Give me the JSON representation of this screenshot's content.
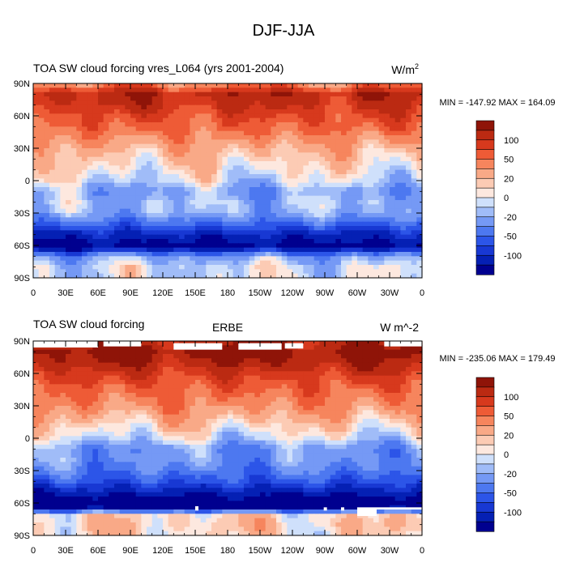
{
  "figure_title": "DJF-JJA",
  "chart_data": [
    {
      "type": "heatmap",
      "title_left": "TOA SW cloud forcing vres_L064 (yrs 2001-2004)",
      "title_center": "",
      "units": "W/m",
      "units_sup": "2",
      "stats": "MIN = -147.92 MAX = 164.09",
      "x_ticks": [
        "0",
        "30E",
        "60E",
        "90E",
        "120E",
        "150E",
        "180",
        "150W",
        "120W",
        "90W",
        "60W",
        "30W",
        "0"
      ],
      "y_ticks": [
        "90N",
        "60N",
        "30N",
        "0",
        "30S",
        "60S",
        "90S"
      ],
      "xlim": [
        0,
        360
      ],
      "ylim": [
        -90,
        90
      ],
      "colorbar_labels": [
        "100",
        "50",
        "20",
        "0",
        "-20",
        "-50",
        "-100"
      ],
      "missing_regions": [],
      "zonal_profile": [
        {
          "lat": 90,
          "value": 40
        },
        {
          "lat": 80,
          "value": 90
        },
        {
          "lat": 70,
          "value": 80
        },
        {
          "lat": 60,
          "value": 65
        },
        {
          "lat": 50,
          "value": 55
        },
        {
          "lat": 40,
          "value": 40
        },
        {
          "lat": 30,
          "value": 25
        },
        {
          "lat": 20,
          "value": 15
        },
        {
          "lat": 10,
          "value": 5
        },
        {
          "lat": 0,
          "value": -5
        },
        {
          "lat": -10,
          "value": -25
        },
        {
          "lat": -20,
          "value": -15
        },
        {
          "lat": -30,
          "value": -20
        },
        {
          "lat": -40,
          "value": -50
        },
        {
          "lat": -50,
          "value": -85
        },
        {
          "lat": -60,
          "value": -110
        },
        {
          "lat": -65,
          "value": -75
        },
        {
          "lat": -70,
          "value": -25
        },
        {
          "lat": -80,
          "value": -5
        },
        {
          "lat": -90,
          "value": -5
        }
      ]
    },
    {
      "type": "heatmap",
      "title_left": "TOA SW cloud forcing",
      "title_center": "ERBE",
      "units": "W m^-2",
      "units_sup": "",
      "stats": "MIN = -235.06 MAX = 179.49",
      "x_ticks": [
        "0",
        "30E",
        "60E",
        "90E",
        "120E",
        "150E",
        "180",
        "150W",
        "120W",
        "90W",
        "60W",
        "30W",
        "0"
      ],
      "y_ticks": [
        "90N",
        "60N",
        "30N",
        "0",
        "30S",
        "60S",
        "90S"
      ],
      "xlim": [
        0,
        360
      ],
      "ylim": [
        -90,
        90
      ],
      "colorbar_labels": [
        "100",
        "50",
        "20",
        "0",
        "-20",
        "-50",
        "-100"
      ],
      "missing_regions": [
        {
          "lon": [
            0,
            60
          ],
          "lat": [
            84,
            90
          ]
        },
        {
          "lon": [
            65,
            100
          ],
          "lat": [
            85,
            90
          ]
        },
        {
          "lon": [
            130,
            175
          ],
          "lat": [
            82,
            88
          ]
        },
        {
          "lon": [
            190,
            230
          ],
          "lat": [
            82,
            88
          ]
        },
        {
          "lon": [
            233,
            250
          ],
          "lat": [
            83,
            88
          ]
        },
        {
          "lon": [
            325,
            360
          ],
          "lat": [
            85,
            90
          ]
        },
        {
          "lon": [
            150,
            153
          ],
          "lat": [
            -67,
            -63
          ]
        },
        {
          "lon": [
            269,
            272
          ],
          "lat": [
            -67,
            -64
          ]
        },
        {
          "lon": [
            285,
            288
          ],
          "lat": [
            -67,
            -64
          ]
        },
        {
          "lon": [
            300,
            318
          ],
          "lat": [
            -72,
            -64
          ]
        },
        {
          "lon": [
            318,
            360
          ],
          "lat": [
            -66,
            -64
          ]
        }
      ],
      "zonal_profile": [
        {
          "lat": 90,
          "value": 90
        },
        {
          "lat": 80,
          "value": 110
        },
        {
          "lat": 70,
          "value": 95
        },
        {
          "lat": 60,
          "value": 75
        },
        {
          "lat": 50,
          "value": 60
        },
        {
          "lat": 40,
          "value": 50
        },
        {
          "lat": 30,
          "value": 40
        },
        {
          "lat": 20,
          "value": 25
        },
        {
          "lat": 10,
          "value": 10
        },
        {
          "lat": 0,
          "value": -5
        },
        {
          "lat": -10,
          "value": -30
        },
        {
          "lat": -20,
          "value": -30
        },
        {
          "lat": -30,
          "value": -40
        },
        {
          "lat": -40,
          "value": -60
        },
        {
          "lat": -50,
          "value": -90
        },
        {
          "lat": -60,
          "value": -130
        },
        {
          "lat": -65,
          "value": -110
        },
        {
          "lat": -70,
          "value": 10
        },
        {
          "lat": -80,
          "value": 15
        },
        {
          "lat": -90,
          "value": 10
        }
      ]
    }
  ],
  "colorbar": {
    "levels": [
      -100,
      -80,
      -65,
      -50,
      -35,
      -20,
      -10,
      0,
      10,
      20,
      35,
      50,
      65,
      80,
      100,
      120
    ],
    "colors": [
      "#00008f",
      "#0520b4",
      "#1838d3",
      "#2c55e8",
      "#4d78f0",
      "#7599f5",
      "#a0bcf8",
      "#cfe0fb",
      "#fde8df",
      "#fccbb4",
      "#f9a987",
      "#f6855d",
      "#ee5b36",
      "#d7391d",
      "#bb2a12",
      "#8f1408"
    ]
  }
}
